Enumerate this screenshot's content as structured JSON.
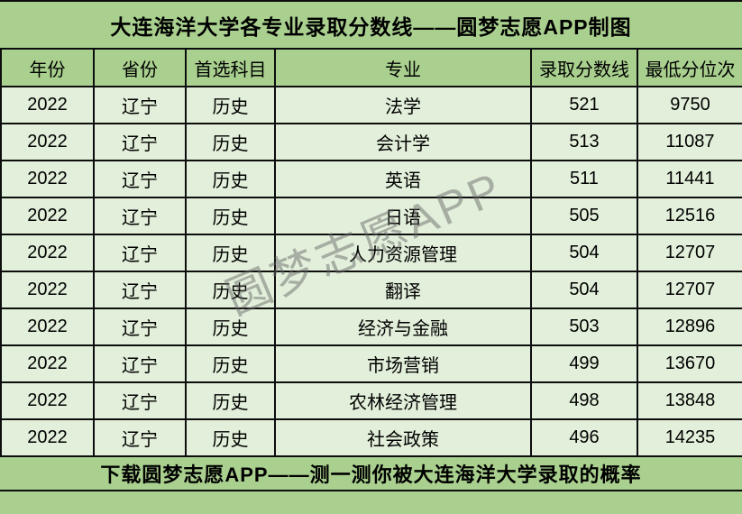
{
  "header": {
    "title": "大连海洋大学各专业录取分数线——圆梦志愿APP制图"
  },
  "watermark": {
    "text": "圆梦志愿APP"
  },
  "footer": {
    "text": "下载圆梦志愿APP——测一测你被大连海洋大学录取的概率"
  },
  "colors": {
    "band_green": "#a9d08e",
    "row_green": "#e2efda",
    "border_black": "#0d0d0d",
    "watermark_gray": "#646464"
  },
  "chart_data": {
    "type": "table",
    "title": "大连海洋大学各专业录取分数线——圆梦志愿APP制图",
    "columns": [
      "年份",
      "省份",
      "首选科目",
      "专业",
      "录取分数线",
      "最低分位次"
    ],
    "rows": [
      [
        "2022",
        "辽宁",
        "历史",
        "法学",
        "521",
        "9750"
      ],
      [
        "2022",
        "辽宁",
        "历史",
        "会计学",
        "513",
        "11087"
      ],
      [
        "2022",
        "辽宁",
        "历史",
        "英语",
        "511",
        "11441"
      ],
      [
        "2022",
        "辽宁",
        "历史",
        "日语",
        "505",
        "12516"
      ],
      [
        "2022",
        "辽宁",
        "历史",
        "人力资源管理",
        "504",
        "12707"
      ],
      [
        "2022",
        "辽宁",
        "历史",
        "翻译",
        "504",
        "12707"
      ],
      [
        "2022",
        "辽宁",
        "历史",
        "经济与金融",
        "503",
        "12896"
      ],
      [
        "2022",
        "辽宁",
        "历史",
        "市场营销",
        "499",
        "13670"
      ],
      [
        "2022",
        "辽宁",
        "历史",
        "农林经济管理",
        "498",
        "13848"
      ],
      [
        "2022",
        "辽宁",
        "历史",
        "社会政策",
        "496",
        "14235"
      ]
    ],
    "footer": "下载圆梦志愿APP——测一测你被大连海洋大学录取的概率",
    "watermark": "圆梦志愿APP"
  }
}
